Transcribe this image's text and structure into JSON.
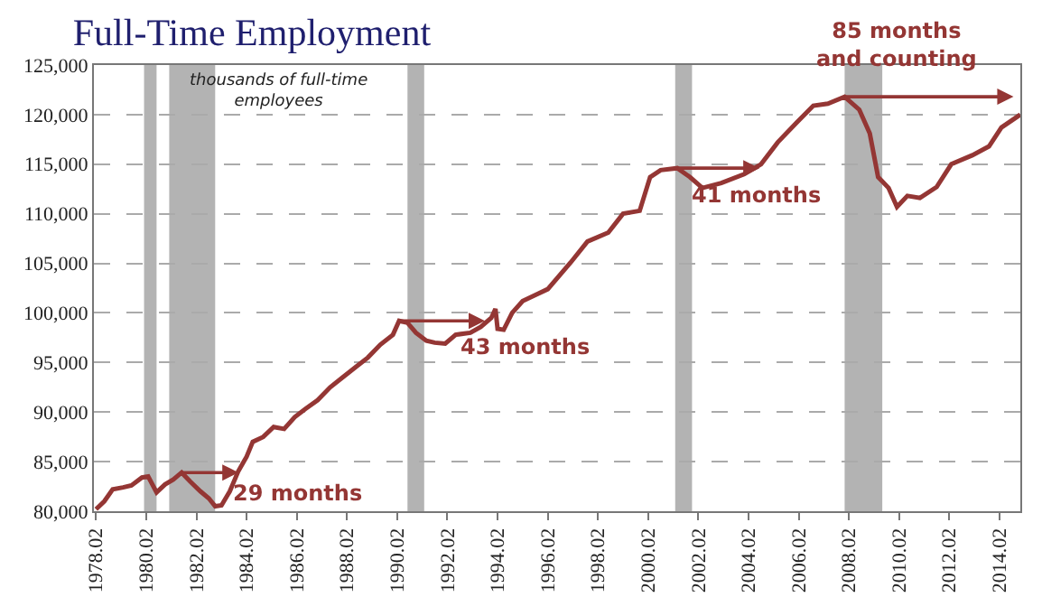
{
  "chart_data": {
    "type": "line",
    "title": "Full-Time Employment",
    "x": [
      "1978-02",
      "1978-06",
      "1978-10",
      "1979-03",
      "1979-07",
      "1979-12",
      "1980-03",
      "1980-07",
      "1980-11",
      "1981-03",
      "1981-07",
      "1981-11",
      "1982-04",
      "1982-08",
      "1982-11",
      "1983-02",
      "1983-06",
      "1983-10",
      "1984-02",
      "1984-05",
      "1984-10",
      "1985-03",
      "1985-08",
      "1986-01",
      "1986-06",
      "1986-12",
      "1987-06",
      "1987-12",
      "1988-06",
      "1988-12",
      "1989-06",
      "1989-12",
      "1990-03",
      "1990-07",
      "1990-11",
      "1991-04",
      "1991-08",
      "1992-01",
      "1992-06",
      "1993-01",
      "1993-06",
      "1993-11",
      "1994-01",
      "1994-02",
      "1994-05",
      "1994-09",
      "1995-02",
      "1995-08",
      "1996-02",
      "1997-01",
      "1997-09",
      "1998-07",
      "1999-02",
      "1999-10",
      "2000-03",
      "2000-08",
      "2001-04",
      "2001-10",
      "2002-04",
      "2003-01",
      "2003-12",
      "2004-08",
      "2005-04",
      "2006-01",
      "2006-09",
      "2007-04",
      "2007-12",
      "2008-07",
      "2008-12",
      "2009-04",
      "2009-09",
      "2010-01",
      "2010-06",
      "2010-12",
      "2011-08",
      "2012-03",
      "2013-01",
      "2013-09",
      "2014-03",
      "2014-12"
    ],
    "series": [
      {
        "color": "#943634",
        "values": [
          80200,
          81000,
          82200,
          82400,
          82600,
          83400,
          83500,
          81900,
          82700,
          83200,
          83900,
          83000,
          82000,
          81300,
          80500,
          80600,
          82000,
          84000,
          85500,
          87000,
          87500,
          88500,
          88300,
          89500,
          90300,
          91200,
          92500,
          93500,
          94500,
          95500,
          96800,
          97800,
          99200,
          99000,
          98000,
          97200,
          97000,
          96900,
          97800,
          98000,
          98600,
          99500,
          100400,
          98400,
          98300,
          100000,
          101200,
          101800,
          102400,
          105100,
          107200,
          108100,
          110000,
          110300,
          113700,
          114400,
          114600,
          113700,
          112600,
          113100,
          114000,
          115000,
          117200,
          119200,
          120900,
          121100,
          121800,
          120500,
          118100,
          113700,
          112600,
          110700,
          111800,
          111600,
          112700,
          115000,
          115900,
          116800,
          118700,
          120000
        ]
      }
    ],
    "xlim": [
      "1978-01",
      "2014-12"
    ],
    "xticks": [
      {
        "value": "1978-02",
        "label": "1978.02"
      },
      {
        "value": "1980-02",
        "label": "1980.02"
      },
      {
        "value": "1982-02",
        "label": "1982.02"
      },
      {
        "value": "1984-02",
        "label": "1984.02"
      },
      {
        "value": "1986-02",
        "label": "1986.02"
      },
      {
        "value": "1988-02",
        "label": "1988.02"
      },
      {
        "value": "1990-02",
        "label": "1990.02"
      },
      {
        "value": "1992-02",
        "label": "1992.02"
      },
      {
        "value": "1994-02",
        "label": "1994.02"
      },
      {
        "value": "1996-02",
        "label": "1996.02"
      },
      {
        "value": "1998-02",
        "label": "1998.02"
      },
      {
        "value": "2000-02",
        "label": "2000.02"
      },
      {
        "value": "2002-02",
        "label": "2002.02"
      },
      {
        "value": "2004-02",
        "label": "2004.02"
      },
      {
        "value": "2006-02",
        "label": "2006.02"
      },
      {
        "value": "2008-02",
        "label": "2008.02"
      },
      {
        "value": "2010-02",
        "label": "2010.02"
      },
      {
        "value": "2012-02",
        "label": "2012.02"
      },
      {
        "value": "2014-02",
        "label": "2014.02"
      }
    ],
    "ylim": [
      80000,
      125000
    ],
    "yticks": [
      {
        "value": 80000,
        "label": "80,000"
      },
      {
        "value": 85000,
        "label": "85,000"
      },
      {
        "value": 90000,
        "label": "90,000"
      },
      {
        "value": 95000,
        "label": "95,000"
      },
      {
        "value": 100000,
        "label": "100,000"
      },
      {
        "value": 105000,
        "label": "105,000"
      },
      {
        "value": 110000,
        "label": "110,000"
      },
      {
        "value": 115000,
        "label": "115,000"
      },
      {
        "value": 120000,
        "label": "120,000"
      },
      {
        "value": 125000,
        "label": "125,000"
      }
    ],
    "grid": "y",
    "marker": "none",
    "line_style": "solid",
    "bands": [
      {
        "axis": "x",
        "from": "1980-01",
        "to": "1980-07",
        "color": "#b3b3b3"
      },
      {
        "axis": "x",
        "from": "1981-01",
        "to": "1982-11",
        "color": "#b3b3b3"
      },
      {
        "axis": "x",
        "from": "1990-07",
        "to": "1991-03",
        "color": "#b3b3b3"
      },
      {
        "axis": "x",
        "from": "2001-03",
        "to": "2001-11",
        "color": "#b3b3b3"
      },
      {
        "axis": "x",
        "from": "2007-12",
        "to": "2009-06",
        "color": "#b3b3b3"
      }
    ],
    "annotations": [
      "thousands of full-time\nemployees",
      {
        "text": "29 months",
        "x": "1981-07",
        "y": 83900
      },
      {
        "text": "43 months",
        "x": "1990-03",
        "y": 99200
      },
      {
        "text": "41 months",
        "x": "2001-04",
        "y": 114600
      },
      {
        "text": "85 months\nand counting",
        "x": "2007-12",
        "y": 121800
      }
    ]
  }
}
